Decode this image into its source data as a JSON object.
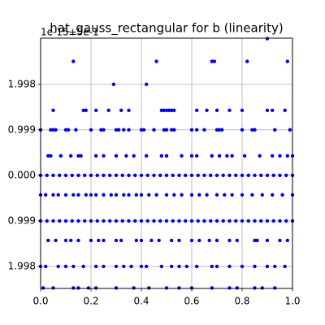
{
  "chart_data": {
    "type": "scatter",
    "title": "hat_gauss_rectangular for b (linearity)",
    "offset_text": "1e-15+5e-1",
    "xlim": [
      0,
      1
    ],
    "ylim": [
      -2.48,
      3.01
    ],
    "xticks": [
      {
        "value": 0,
        "label": "0.0"
      },
      0.2,
      0.4,
      0.6,
      0.8,
      {
        "value": 1,
        "label": "1.0"
      }
    ],
    "yticks": [
      {
        "value": 1.998,
        "label": "1.998"
      },
      {
        "value": 0.999,
        "label": "0.999"
      },
      {
        "value": 0,
        "label": "0.000"
      },
      {
        "value": -0.999,
        "label": "0.999"
      },
      {
        "value": -1.998,
        "label": "1.998"
      }
    ],
    "grid": true,
    "series": [
      {
        "color": "#0000ff",
        "x": [
          0.9
        ],
        "values": [
          3.0
        ]
      },
      {
        "color": "#0000ff",
        "x": [
          0.13,
          0.46,
          0.68,
          0.69,
          0.82,
          0.98
        ],
        "values": [
          2.5,
          2.5,
          2.5,
          2.5,
          2.5,
          2.5
        ]
      },
      {
        "color": "#0000ff",
        "x": [
          0.29,
          0.42
        ],
        "values": [
          1.998,
          1.998
        ]
      },
      {
        "color": "#0000ff",
        "x": [
          0.05,
          0.17,
          0.18,
          0.22,
          0.27,
          0.32,
          0.35,
          0.48,
          0.49,
          0.5,
          0.51,
          0.52,
          0.53,
          0.62,
          0.66,
          0.7,
          0.75,
          0.8,
          0.9,
          0.92,
          0.97
        ],
        "values": [
          1.427,
          1.427,
          1.427,
          1.427,
          1.427,
          1.427,
          1.427,
          1.427,
          1.427,
          1.427,
          1.427,
          1.427,
          1.427,
          1.427,
          1.427,
          1.427,
          1.427,
          1.427,
          1.427,
          1.427,
          1.427
        ]
      },
      {
        "color": "#0000ff",
        "x": [
          0.0,
          0.04,
          0.05,
          0.06,
          0.1,
          0.11,
          0.14,
          0.2,
          0.24,
          0.25,
          0.3,
          0.31,
          0.33,
          0.35,
          0.4,
          0.41,
          0.45,
          0.49,
          0.5,
          0.52,
          0.53,
          0.6,
          0.62,
          0.65,
          0.7,
          0.71,
          0.72,
          0.8,
          0.84,
          0.85,
          0.93,
          0.99
        ],
        "values": [
          0.999,
          0.999,
          0.999,
          0.999,
          0.999,
          0.999,
          0.999,
          0.999,
          0.999,
          0.999,
          0.999,
          0.999,
          0.999,
          0.999,
          0.999,
          0.999,
          0.999,
          0.999,
          0.999,
          0.999,
          0.999,
          0.999,
          0.999,
          0.999,
          0.999,
          0.999,
          0.999,
          0.999,
          0.999,
          0.999,
          0.999,
          0.999
        ]
      },
      {
        "color": "#0000ff",
        "x": [
          0.03,
          0.04,
          0.08,
          0.12,
          0.15,
          0.16,
          0.22,
          0.25,
          0.3,
          0.34,
          0.37,
          0.42,
          0.48,
          0.5,
          0.56,
          0.6,
          0.62,
          0.68,
          0.71,
          0.74,
          0.76,
          0.81,
          0.87,
          0.92,
          0.95,
          0.98,
          1.0
        ],
        "values": [
          0.428,
          0.428,
          0.428,
          0.428,
          0.428,
          0.428,
          0.428,
          0.428,
          0.428,
          0.428,
          0.428,
          0.428,
          0.428,
          0.428,
          0.428,
          0.428,
          0.428,
          0.428,
          0.428,
          0.428,
          0.428,
          0.428,
          0.428,
          0.428,
          0.428,
          0.428,
          0.428
        ]
      },
      {
        "color": "#0000ff",
        "x": [
          0,
          0.025,
          0.05,
          0.075,
          0.1,
          0.125,
          0.15,
          0.175,
          0.2,
          0.225,
          0.25,
          0.275,
          0.3,
          0.325,
          0.35,
          0.375,
          0.4,
          0.425,
          0.45,
          0.475,
          0.5,
          0.525,
          0.55,
          0.575,
          0.6,
          0.625,
          0.65,
          0.675,
          0.7,
          0.725,
          0.75,
          0.775,
          0.8,
          0.825,
          0.85,
          0.875,
          0.9,
          0.925,
          0.95,
          0.975,
          1.0
        ],
        "values": [
          0,
          0,
          0,
          0,
          0,
          0,
          0,
          0,
          0,
          0,
          0,
          0,
          0,
          0,
          0,
          0,
          0,
          0,
          0,
          0,
          0,
          0,
          0,
          0,
          0,
          0,
          0,
          0,
          0,
          0,
          0,
          0,
          0,
          0,
          0,
          0,
          0,
          0,
          0,
          0,
          0
        ]
      },
      {
        "color": "#0000ff",
        "x": [
          0,
          0.02,
          0.05,
          0.07,
          0.1,
          0.13,
          0.15,
          0.18,
          0.2,
          0.22,
          0.25,
          0.28,
          0.3,
          0.33,
          0.35,
          0.38,
          0.4,
          0.43,
          0.46,
          0.5,
          0.53,
          0.56,
          0.6,
          0.63,
          0.66,
          0.7,
          0.73,
          0.76,
          0.8,
          0.84,
          0.88,
          0.92,
          0.96,
          1.0
        ],
        "values": [
          -0.428,
          -0.428,
          -0.428,
          -0.428,
          -0.428,
          -0.428,
          -0.428,
          -0.428,
          -0.428,
          -0.428,
          -0.428,
          -0.428,
          -0.428,
          -0.428,
          -0.428,
          -0.428,
          -0.428,
          -0.428,
          -0.428,
          -0.428,
          -0.428,
          -0.428,
          -0.428,
          -0.428,
          -0.428,
          -0.428,
          -0.428,
          -0.428,
          -0.428,
          -0.428,
          -0.428,
          -0.428,
          -0.428,
          -0.428
        ]
      },
      {
        "color": "#0000ff",
        "x": [
          0,
          0.025,
          0.05,
          0.075,
          0.1,
          0.125,
          0.15,
          0.175,
          0.2,
          0.225,
          0.25,
          0.275,
          0.3,
          0.325,
          0.35,
          0.375,
          0.4,
          0.425,
          0.45,
          0.475,
          0.5,
          0.525,
          0.55,
          0.575,
          0.6,
          0.625,
          0.65,
          0.675,
          0.7,
          0.725,
          0.75,
          0.775,
          0.8,
          0.825,
          0.85,
          0.875,
          0.9,
          0.925,
          0.95,
          0.975,
          1.0
        ],
        "values": [
          -0.999,
          -0.999,
          -0.999,
          -0.999,
          -0.999,
          -0.999,
          -0.999,
          -0.999,
          -0.999,
          -0.999,
          -0.999,
          -0.999,
          -0.999,
          -0.999,
          -0.999,
          -0.999,
          -0.999,
          -0.999,
          -0.999,
          -0.999,
          -0.999,
          -0.999,
          -0.999,
          -0.999,
          -0.999,
          -0.999,
          -0.999,
          -0.999,
          -0.999,
          -0.999,
          -0.999,
          -0.999,
          -0.999,
          -0.999,
          -0.999,
          -0.999,
          -0.999,
          -0.999,
          -0.999,
          -0.999,
          -0.999
        ]
      },
      {
        "color": "#0000ff",
        "x": [
          0.03,
          0.06,
          0.1,
          0.12,
          0.15,
          0.2,
          0.23,
          0.25,
          0.3,
          0.32,
          0.38,
          0.4,
          0.44,
          0.47,
          0.52,
          0.55,
          0.6,
          0.63,
          0.67,
          0.7,
          0.75,
          0.78,
          0.85,
          0.86,
          0.9,
          0.95,
          0.98
        ],
        "values": [
          -1.427,
          -1.427,
          -1.427,
          -1.427,
          -1.427,
          -1.427,
          -1.427,
          -1.427,
          -1.427,
          -1.427,
          -1.427,
          -1.427,
          -1.427,
          -1.427,
          -1.427,
          -1.427,
          -1.427,
          -1.427,
          -1.427,
          -1.427,
          -1.427,
          -1.427,
          -1.427,
          -1.427,
          -1.427,
          -1.427,
          -1.427
        ]
      },
      {
        "color": "#0000ff",
        "x": [
          0,
          0.02,
          0.07,
          0.1,
          0.13,
          0.17,
          0.22,
          0.25,
          0.3,
          0.33,
          0.36,
          0.4,
          0.42,
          0.48,
          0.52,
          0.55,
          0.58,
          0.62,
          0.68,
          0.7,
          0.75,
          0.8,
          0.85,
          0.9,
          0.93,
          0.97
        ],
        "values": [
          -1.998,
          -1.998,
          -1.998,
          -1.998,
          -1.998,
          -1.998,
          -1.998,
          -1.998,
          -1.998,
          -1.998,
          -1.998,
          -1.998,
          -1.998,
          -1.998,
          -1.998,
          -1.998,
          -1.998,
          -1.998,
          -1.998,
          -1.998,
          -1.998,
          -1.998,
          -1.998,
          -1.998,
          -1.998,
          -1.998
        ]
      },
      {
        "color": "#0000ff",
        "x": [
          0.01,
          0.05,
          0.13,
          0.15,
          0.19,
          0.22,
          0.3,
          0.37,
          0.43,
          0.5,
          0.55,
          0.6,
          0.68,
          0.75,
          0.78,
          0.85,
          0.88,
          0.93
        ],
        "values": [
          -2.47,
          -2.47,
          -2.47,
          -2.47,
          -2.47,
          -2.47,
          -2.47,
          -2.47,
          -2.47,
          -2.47,
          -2.47,
          -2.47,
          -2.47,
          -2.47,
          -2.47,
          -2.47,
          -2.47,
          -2.47
        ]
      }
    ]
  }
}
